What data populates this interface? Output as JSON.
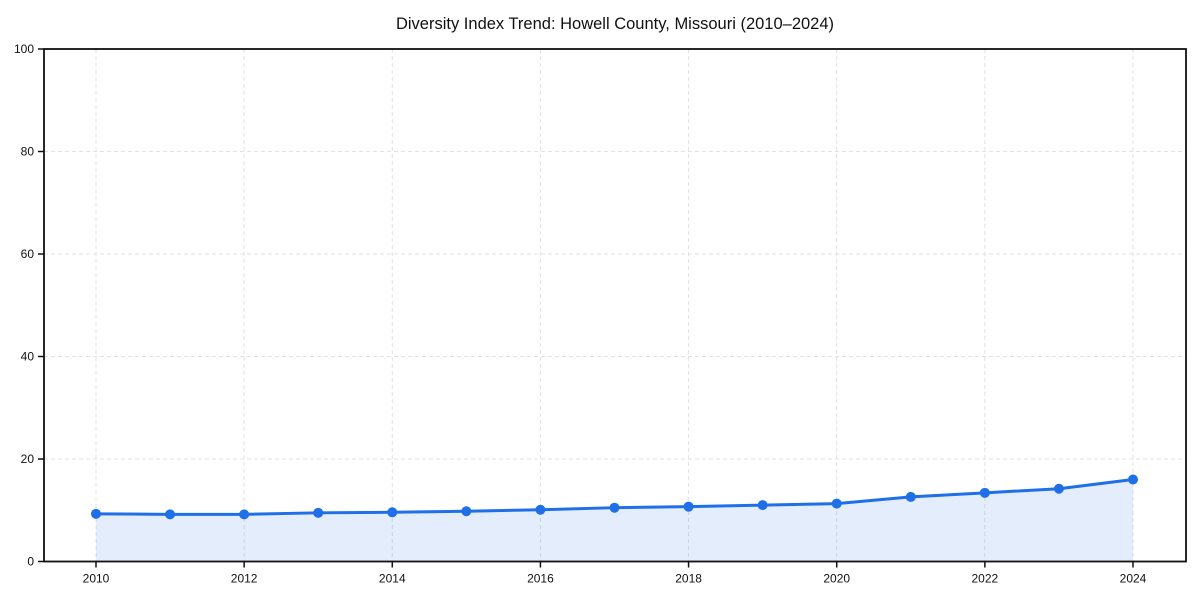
{
  "title": "Diversity Index Trend: Howell County, Missouri (2010–2024)",
  "chart_data": {
    "type": "area",
    "title": "Diversity Index Trend: Howell County, Missouri (2010–2024)",
    "xlabel": "",
    "ylabel": "",
    "x": [
      2010,
      2011,
      2012,
      2013,
      2014,
      2015,
      2016,
      2017,
      2018,
      2019,
      2020,
      2021,
      2022,
      2023,
      2024
    ],
    "series": [
      {
        "name": "Diversity Index",
        "values": [
          9.3,
          9.2,
          9.2,
          9.5,
          9.6,
          9.8,
          10.1,
          10.5,
          10.7,
          11.0,
          11.3,
          12.6,
          13.4,
          14.2,
          16.0
        ]
      }
    ],
    "xlim": [
      2010,
      2024
    ],
    "ylim": [
      0,
      100
    ],
    "xticks": [
      2010,
      2012,
      2014,
      2016,
      2018,
      2020,
      2022,
      2024
    ],
    "yticks": [
      0,
      20,
      40,
      60,
      80,
      100
    ],
    "grid": "dashed",
    "legend_position": "none",
    "line_color": "#1f6fe8",
    "fill_color": "rgba(31,111,232,0.12)",
    "grid_color": "#e2e2e2",
    "axis_color": "#111111",
    "marker": "circle"
  }
}
